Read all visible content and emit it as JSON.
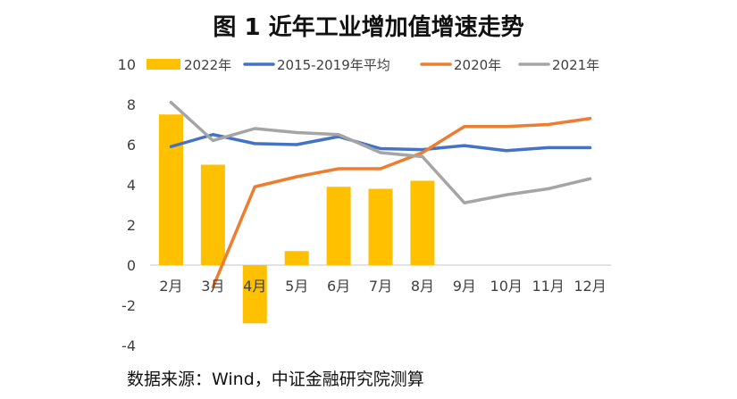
{
  "chart_data": {
    "type": "bar+line",
    "title": "图 1  近年工业增加值增速走势",
    "source": "数据来源：Wind，中证金融研究院测算",
    "categories": [
      "2月",
      "3月",
      "4月",
      "5月",
      "6月",
      "7月",
      "8月",
      "9月",
      "10月",
      "11月",
      "12月"
    ],
    "ylim": [
      -4,
      10
    ],
    "yticks": [
      -4,
      -2,
      0,
      2,
      4,
      6,
      8,
      10
    ],
    "legend_position": "top",
    "colors": {
      "bar_2022": "#FFC000",
      "line_2015_2019": "#4472C4",
      "line_2020": "#ED7D31",
      "line_2021": "#A5A5A5",
      "axis": "#D9D9D9"
    },
    "bar_series": {
      "name": "2022年",
      "values": [
        7.5,
        5.0,
        -2.9,
        0.7,
        3.9,
        3.8,
        4.2,
        null,
        null,
        null,
        null
      ]
    },
    "line_series": [
      {
        "name": "2015-2019年平均",
        "color": "#4472C4",
        "values": [
          5.9,
          6.5,
          6.05,
          6.0,
          6.4,
          5.8,
          5.75,
          5.95,
          5.7,
          5.85,
          5.85
        ]
      },
      {
        "name": "2020年",
        "color": "#ED7D31",
        "values": [
          null,
          -1.1,
          3.9,
          4.4,
          4.8,
          4.8,
          5.6,
          6.9,
          6.9,
          7.0,
          7.3
        ]
      },
      {
        "name": "2021年",
        "color": "#A5A5A5",
        "values": [
          8.1,
          6.2,
          6.8,
          6.6,
          6.5,
          5.6,
          5.4,
          3.1,
          3.5,
          3.8,
          4.3
        ]
      }
    ]
  }
}
